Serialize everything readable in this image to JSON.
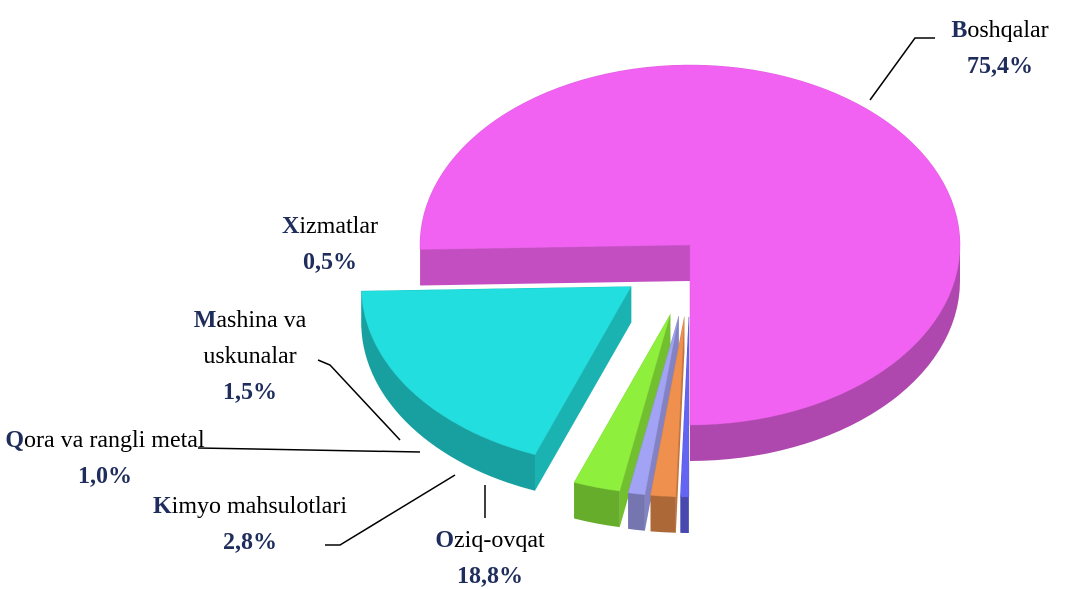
{
  "chart_data": {
    "type": "pie",
    "categories": [
      "Boshqalar",
      "Oziq-ovqat",
      "Kimyo mahsulotlari",
      "Qora va rangli metal",
      "Mashina va uskunalar",
      "Xizmatlar"
    ],
    "values": [
      75.4,
      18.8,
      2.8,
      1.0,
      1.5,
      0.5
    ],
    "value_labels": [
      "75,4%",
      "18,8%",
      "2,8%",
      "1,0%",
      "1,5%",
      "0,5%"
    ],
    "colors": [
      "#f262f2",
      "#22dede",
      "#8ef03c",
      "#a3a3f5",
      "#f0904e",
      "#6464f2"
    ]
  }
}
